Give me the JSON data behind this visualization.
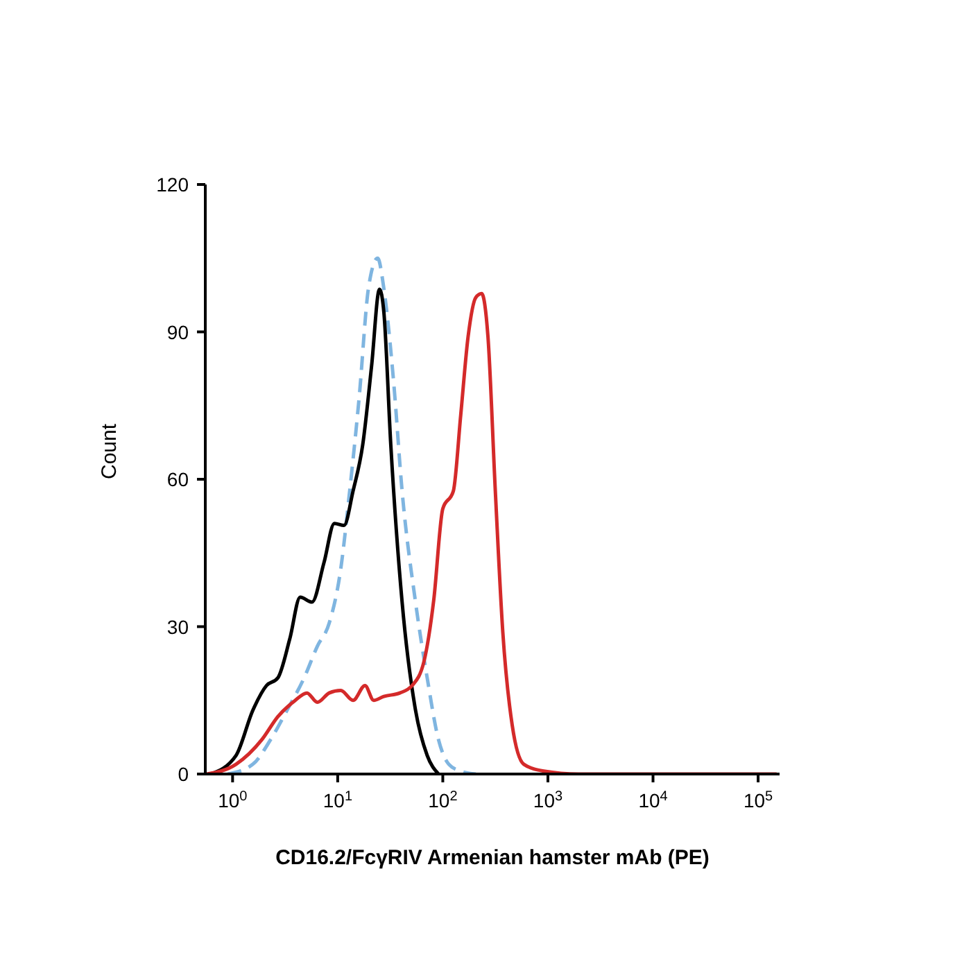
{
  "chart_data": {
    "type": "line",
    "xlabel": "CD16.2/FcγRIV Armenian hamster mAb (PE)",
    "ylabel": "Count",
    "log": "x",
    "xlim": [
      0.55,
      160000
    ],
    "ylim": [
      0,
      120
    ],
    "xticks": [
      {
        "value": 1,
        "label": "10$^{0}$"
      },
      {
        "value": 10,
        "label": "10$^{1}$"
      },
      {
        "value": 100,
        "label": "10$^{2}$"
      },
      {
        "value": 1000,
        "label": "10$^{3}$"
      },
      {
        "value": 10000,
        "label": "10$^{4}$"
      },
      {
        "value": 100000,
        "label": "10$^{5}$"
      }
    ],
    "yticks": [
      0,
      30,
      60,
      90,
      120
    ],
    "marker": "none",
    "series": [
      {
        "color": "#7fb5e0",
        "line_style": "dashed",
        "x": [
          0.9,
          1.56,
          2.3,
          3.3,
          4.8,
          6.4,
          8.3,
          10.7,
          13,
          16,
          19.6,
          24,
          27.5,
          34,
          41,
          55,
          71,
          91,
          114,
          148,
          206
        ],
        "values": [
          0,
          2,
          7,
          13,
          19.6,
          26,
          30.7,
          41.8,
          57.6,
          76.6,
          98.8,
          105,
          98.8,
          80,
          57.6,
          35,
          19.6,
          7,
          2,
          0.6,
          0
        ]
      },
      {
        "color": "#000000",
        "line_style": "solid",
        "x": [
          0.62,
          1.08,
          1.56,
          2.1,
          2.7,
          3.5,
          4.4,
          5.7,
          7.4,
          9.3,
          11.5,
          14,
          17.3,
          21,
          25,
          27.5,
          32,
          41,
          55,
          71,
          91
        ],
        "values": [
          0,
          3.8,
          13,
          18,
          19.6,
          27.5,
          36,
          35,
          43,
          51,
          50.6,
          57.6,
          67,
          83,
          98.7,
          94,
          67,
          35,
          13,
          3.8,
          0
        ]
      },
      {
        "color": "#d42a2a",
        "line_style": "solid",
        "x": [
          0.57,
          1.08,
          1.9,
          2.7,
          3.9,
          5.1,
          6.4,
          8.3,
          10.7,
          14,
          18.2,
          22,
          27.5,
          39,
          51,
          66,
          82,
          100,
          126,
          148,
          174,
          206,
          234,
          269,
          316,
          372,
          457,
          589,
          912,
          1950,
          40000,
          150000
        ],
        "values": [
          0,
          2,
          7,
          11.7,
          14.9,
          16.5,
          14.6,
          16.5,
          17,
          15,
          18,
          15,
          15.8,
          16.5,
          18,
          22.8,
          35.4,
          54,
          57.6,
          73,
          89,
          97,
          97.8,
          89,
          57.6,
          29,
          10,
          2,
          0.6,
          0,
          0,
          0
        ]
      }
    ]
  }
}
